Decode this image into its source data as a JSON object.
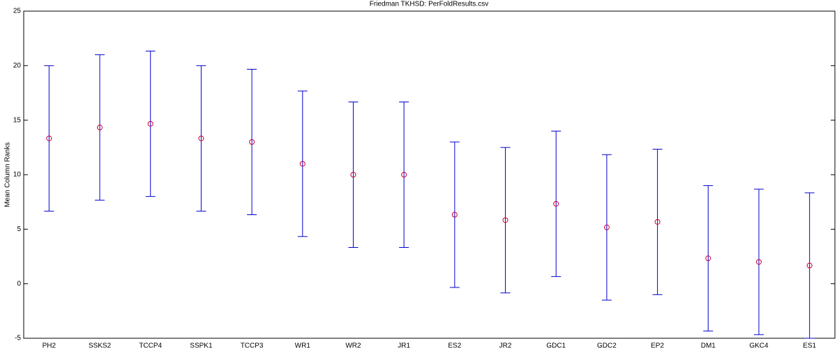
{
  "chart_data": {
    "type": "errorbar",
    "title": "Friedman TKHSD: PerFoldResults.csv",
    "y_label": "Mean Column Ranks",
    "categories": [
      "PH2",
      "SSKS2",
      "TCCP4",
      "SSPK1",
      "TCCP3",
      "WR1",
      "WR2",
      "JR1",
      "ES2",
      "JR2",
      "GDC1",
      "GDC2",
      "EP2",
      "DM1",
      "GKC4",
      "ES1"
    ],
    "values": [
      13.33,
      14.33,
      14.67,
      13.33,
      13,
      11,
      10,
      10,
      6.33,
      5.83,
      7.33,
      5.17,
      5.67,
      2.33,
      2,
      1.67
    ],
    "errors": [
      6.67,
      6.67,
      6.67,
      6.67,
      6.67,
      6.67,
      6.67,
      6.67,
      6.67,
      6.67,
      6.67,
      6.67,
      6.67,
      6.67,
      6.67,
      6.67
    ],
    "marker_color": "#cc0033",
    "bar_color": "#0000cc",
    "ylim": [
      -5,
      25
    ],
    "yticks": [
      -5,
      0,
      5,
      10,
      15,
      20,
      25
    ],
    "grid": false
  }
}
